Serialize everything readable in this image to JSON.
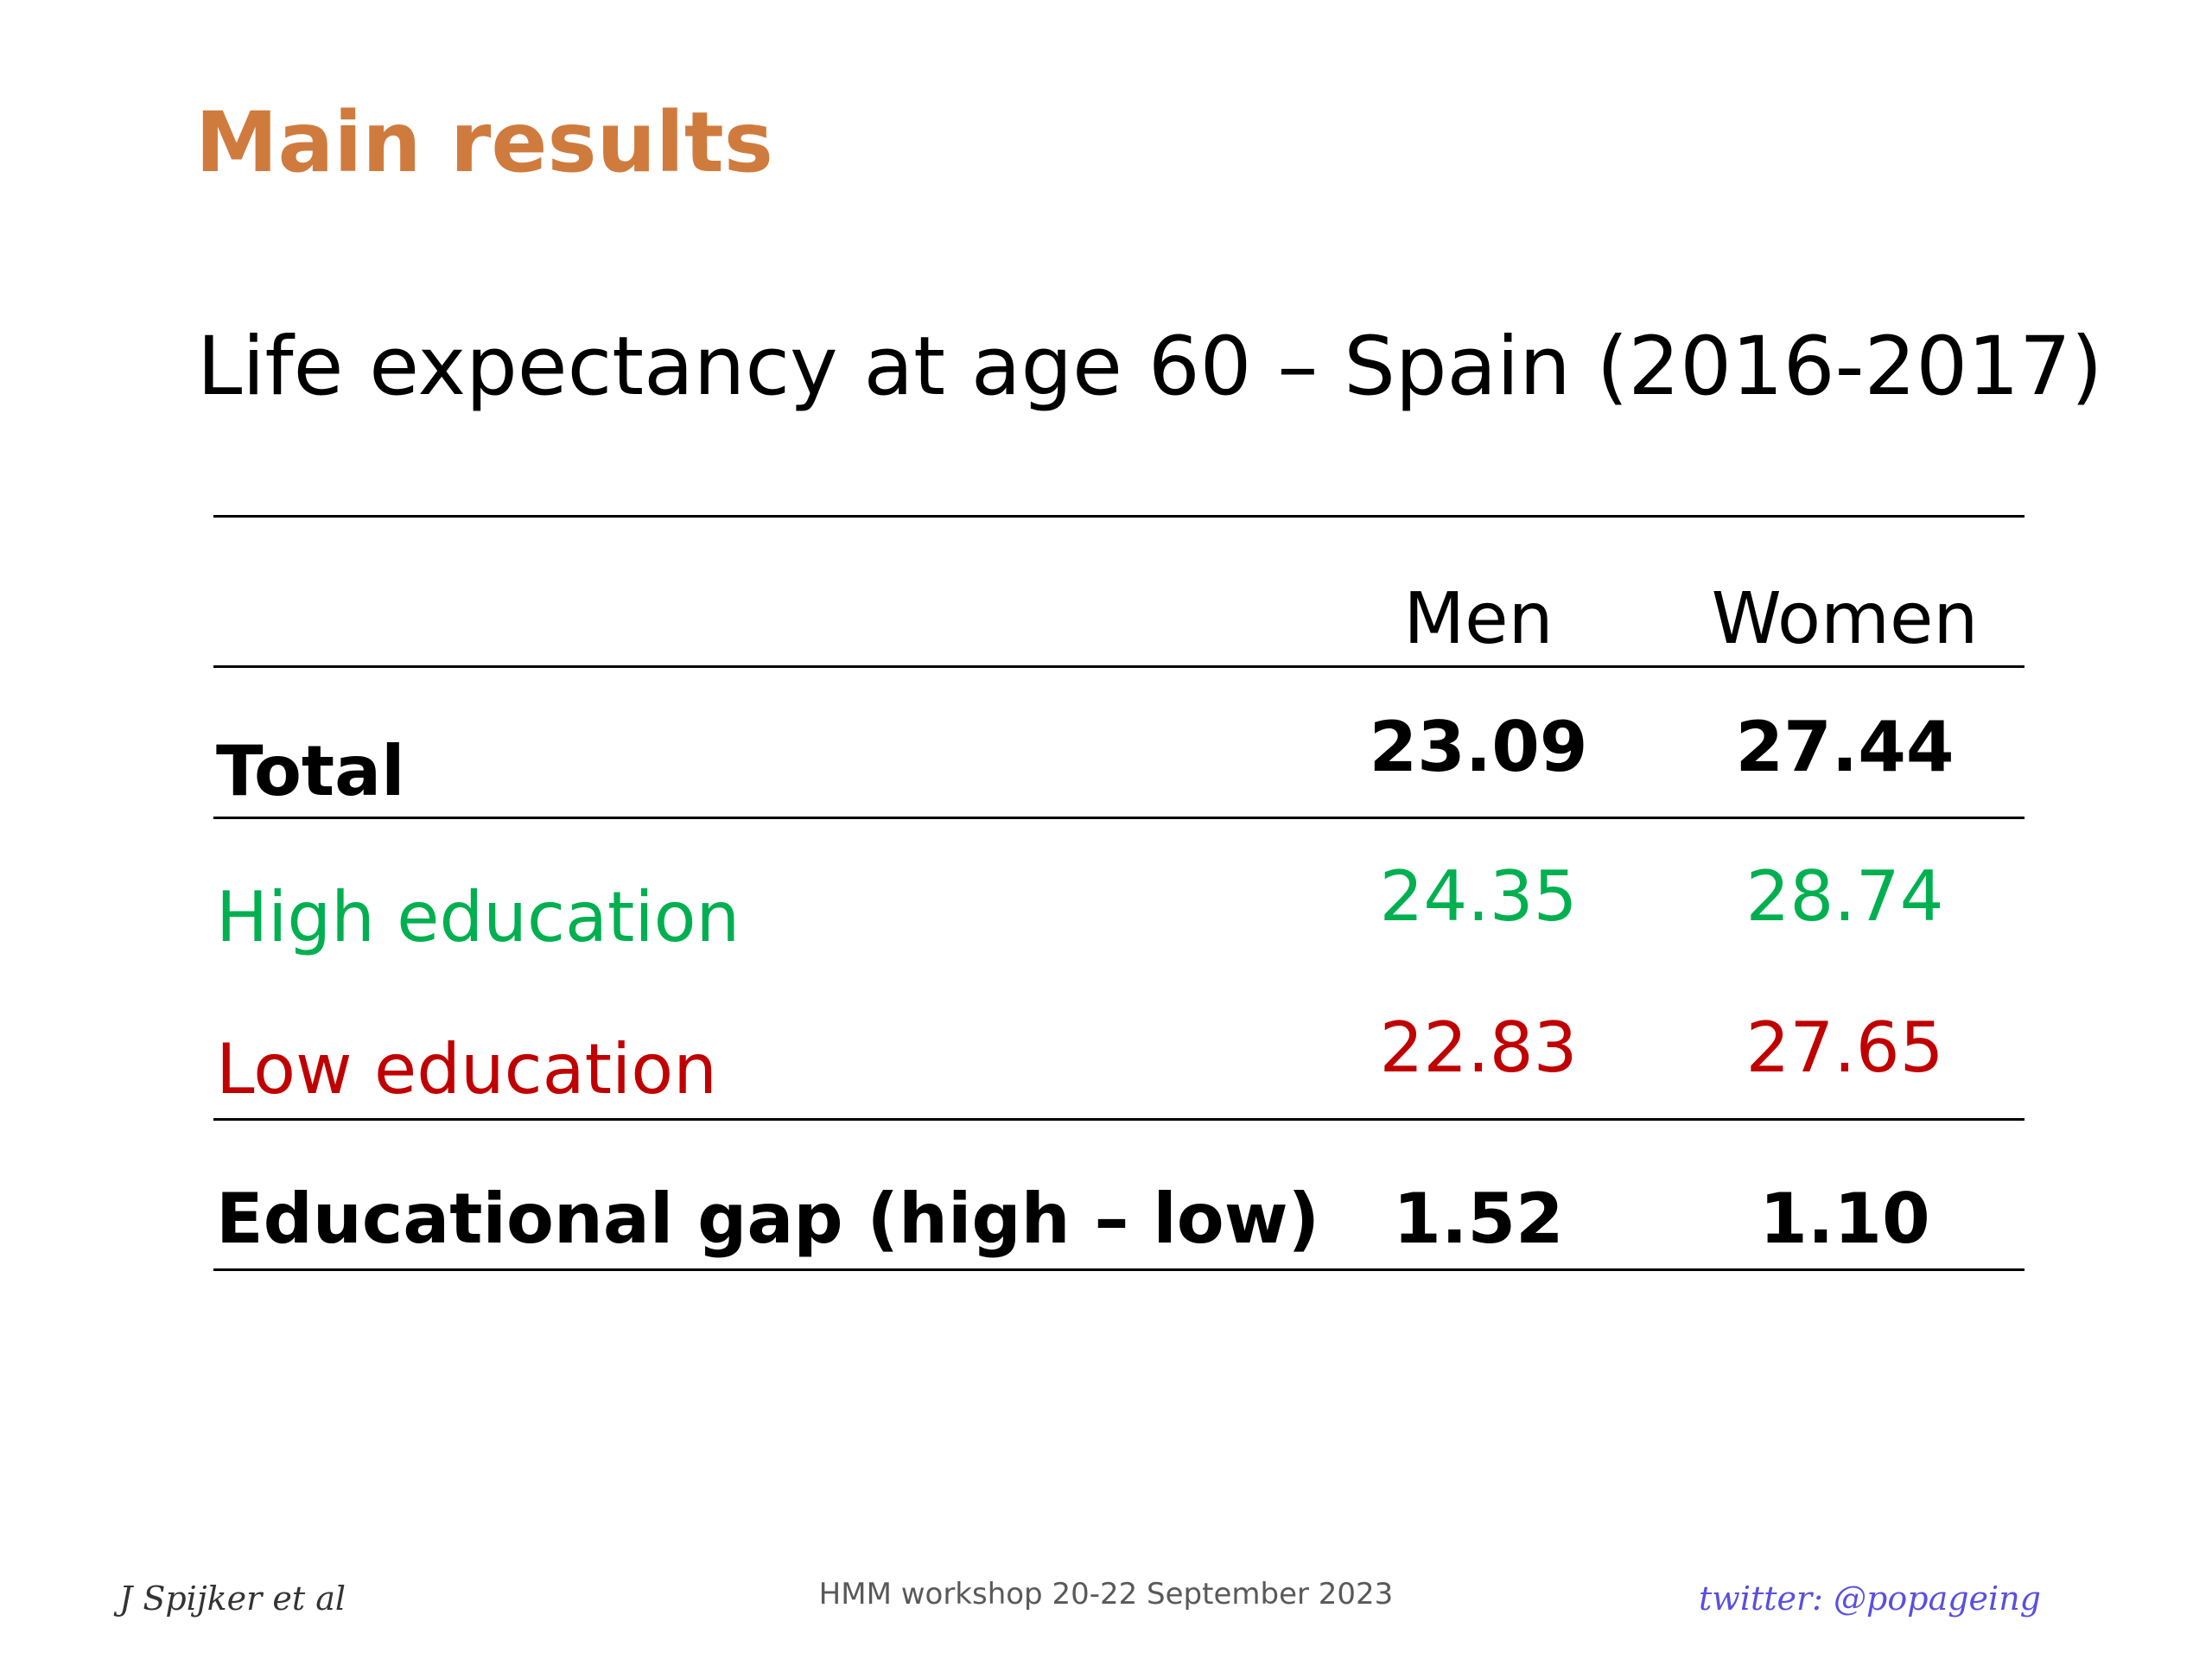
{
  "slide": {
    "title": "Main results",
    "subtitle": "Life expectancy at age 60 – Spain (2016-2017)"
  },
  "table": {
    "columns": [
      "Men",
      "Women"
    ],
    "rows": [
      {
        "label": "Total",
        "men": "23.09",
        "women": "27.44"
      },
      {
        "label": "High education",
        "men": "24.35",
        "women": "28.74"
      },
      {
        "label": "Low education",
        "men": "22.83",
        "women": "27.65"
      },
      {
        "label": "Educational gap (high – low)",
        "men": "1.52",
        "women": "1.10"
      }
    ]
  },
  "colors": {
    "title": "#D07B3E",
    "high_education": "#00B050",
    "low_education": "#C00000",
    "default_text": "#000000",
    "footer_right": "#5A4FE0"
  },
  "footer": {
    "author": "J Spijker et al",
    "event": "HMM workshop 20-22 September 2023",
    "twitter": "twitter: @popageing"
  }
}
